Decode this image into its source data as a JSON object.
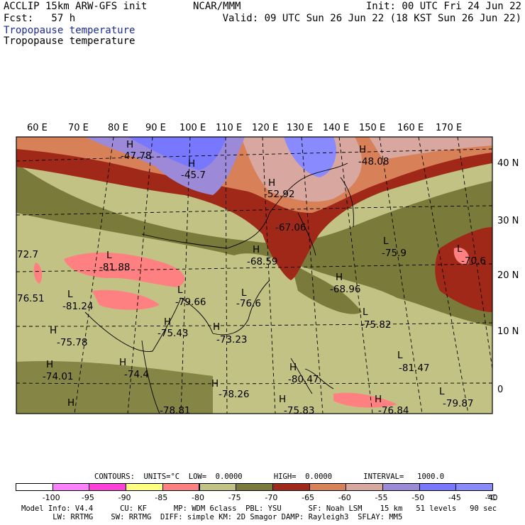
{
  "header": {
    "line1_left": "ACCLIP 15km ARW-GFS init",
    "line1_center": "NCAR/MMM",
    "line1_right": "Init: 00 UTC Fri 24 Jun 22",
    "line2_left": "Fcst:   57 h",
    "line2_right": "Valid: 09 UTC Sun 26 Jun 22 (18 KST Sun 26 Jun 22)",
    "title_blue": "Tropopause temperature",
    "title_black": "Tropopause temperature"
  },
  "map": {
    "lon_labels": [
      "60 E",
      "70 E",
      "80 E",
      "90 E",
      "100 E",
      "110 E",
      "120 E",
      "130 E",
      "140 E",
      "150 E",
      "160 E",
      "170 E"
    ],
    "lat_labels": [
      "40 N",
      "30 N",
      "20 N",
      "10 N",
      "0"
    ],
    "highs_lows": [
      {
        "mark": "H",
        "value": "-47.78"
      },
      {
        "mark": "H",
        "value": "-45.7"
      },
      {
        "mark": "H",
        "value": "-48.08"
      },
      {
        "mark": "H",
        "value": "-52.92"
      },
      {
        "mark": "",
        "value": "-67.06"
      },
      {
        "mark": "H",
        "value": "-68.59"
      },
      {
        "mark": "L",
        "value": "-75.9"
      },
      {
        "mark": "L",
        "value": "-70.6"
      },
      {
        "mark": "L",
        "value": "-81.88"
      },
      {
        "mark": "",
        "value": "72.7"
      },
      {
        "mark": "",
        "value": "76.51"
      },
      {
        "mark": "L",
        "value": "-81.24"
      },
      {
        "mark": "L",
        "value": "-79.66"
      },
      {
        "mark": "L",
        "value": "-76.6"
      },
      {
        "mark": "H",
        "value": "-68.96"
      },
      {
        "mark": "L",
        "value": "-75.82"
      },
      {
        "mark": "H",
        "value": "-75.43"
      },
      {
        "mark": "H",
        "value": "-73.23"
      },
      {
        "mark": "H",
        "value": "-75.78"
      },
      {
        "mark": "H",
        "value": "-74.01"
      },
      {
        "mark": "H",
        "value": "-74.4"
      },
      {
        "mark": "L",
        "value": "-81.47"
      },
      {
        "mark": "H",
        "value": "-80.47"
      },
      {
        "mark": "H",
        "value": "-78.26"
      },
      {
        "mark": "L",
        "value": "-79.87"
      },
      {
        "mark": "H",
        "value": "-78.81"
      },
      {
        "mark": "H",
        "value": "-75.83"
      },
      {
        "mark": "H",
        "value": "-76.84"
      }
    ]
  },
  "contours": {
    "line": "CONTOURS:  UNITS=°C  LOW=  0.0000       HIGH=  0.0000       INTERVAL=   1000.0"
  },
  "colorbar": {
    "colors": [
      "#ffffff",
      "#ff80ff",
      "#ff40d8",
      "#ffff80",
      "#ff8080",
      "#c2c285",
      "#7a7a3a",
      "#a02818",
      "#d88058",
      "#d8a8a0",
      "#9c8ad8",
      "#7878ff",
      "#8a8aff"
    ],
    "labels": [
      "-100",
      "-95",
      "-90",
      "-85",
      "-80",
      "-75",
      "-70",
      "-65",
      "-60",
      "-55",
      "-50",
      "-45",
      "-40"
    ],
    "unit": "°C"
  },
  "footer": {
    "line1": "Model Info: V4.4      CU: KF      MP: WDM 6class  PBL: YSU      SF: Noah LSM    15 km   51 levels   90 sec",
    "line2": "       LW: RRTMG    SW: RRTMG  DIFF: simple KM: 2D Smagor DAMP: Rayleigh3  SFLAY: MM5"
  }
}
